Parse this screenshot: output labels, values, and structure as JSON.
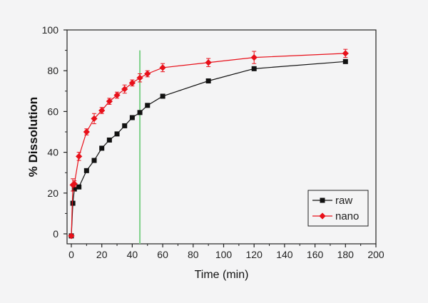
{
  "chart_data": {
    "type": "line",
    "xlabel": "Time (min)",
    "ylabel": "% Dissolution",
    "xlim": [
      0,
      200
    ],
    "ylim": [
      0,
      100
    ],
    "xticks": [
      0,
      20,
      40,
      60,
      80,
      100,
      120,
      140,
      160,
      180,
      200
    ],
    "yticks": [
      0,
      20,
      40,
      60,
      80,
      100
    ],
    "legend_position": "bottom-right",
    "vertical_line": {
      "x": 45,
      "color": "#7fd08a"
    },
    "series": [
      {
        "name": "raw",
        "color": "#111111",
        "marker": "square",
        "x": [
          0,
          1,
          2,
          5,
          10,
          15,
          20,
          25,
          30,
          35,
          40,
          45,
          50,
          60,
          90,
          120,
          180
        ],
        "y": [
          -1,
          15,
          22,
          23,
          31,
          36,
          42,
          46,
          49,
          53,
          57,
          59.5,
          63,
          67.5,
          75,
          81,
          84.5
        ],
        "err": [
          0.3,
          0.5,
          0.5,
          0.5,
          0.5,
          0.5,
          0.5,
          0.5,
          0.5,
          0.5,
          0.5,
          0.5,
          0.5,
          0.5,
          0.5,
          0.5,
          0.5
        ]
      },
      {
        "name": "nano",
        "color": "#e8101a",
        "marker": "diamond",
        "x": [
          0,
          1,
          2,
          5,
          10,
          15,
          20,
          25,
          30,
          35,
          40,
          45,
          50,
          60,
          90,
          120,
          180
        ],
        "y": [
          -1,
          24,
          24.5,
          38,
          50,
          56.5,
          60.5,
          65,
          68,
          71,
          74,
          76.5,
          78.5,
          81.5,
          84,
          86.5,
          88.5
        ],
        "err": [
          0.3,
          3,
          1.5,
          2,
          1.5,
          2.5,
          1.5,
          1.5,
          1.5,
          2,
          1.5,
          2,
          1.5,
          2,
          2,
          3,
          2
        ]
      }
    ]
  }
}
